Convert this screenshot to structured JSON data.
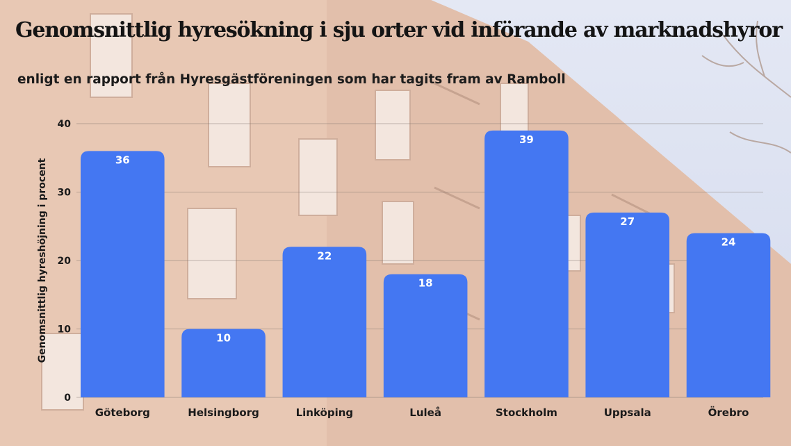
{
  "chart_data": {
    "type": "bar",
    "title": "Genomsnittlig hyresökning i sju orter vid införande av marknadshyror",
    "subtitle": "enligt en rapport från Hyresgästföreningen som har tagits fram av Ramboll",
    "ylabel": "Genomsnittlig hyreshöjning i procent",
    "xlabel": "",
    "categories": [
      "Göteborg",
      "Helsingborg",
      "Linköping",
      "Luleå",
      "Stockholm",
      "Uppsala",
      "Örebro"
    ],
    "values": [
      36,
      10,
      22,
      18,
      39,
      27,
      24
    ],
    "ylim": [
      0,
      40
    ],
    "yticks": [
      0,
      10,
      20,
      30,
      40
    ],
    "grid": true,
    "bar_color": "#4477f2"
  }
}
